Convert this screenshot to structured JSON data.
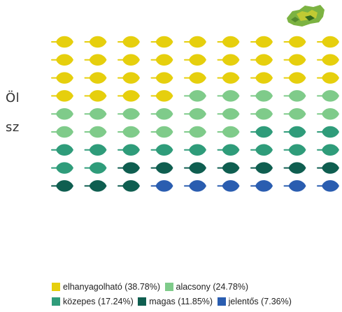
{
  "background_text": {
    "line1": "Öl",
    "line2": "sz"
  },
  "map_thumbnail": {
    "icon": "map-icon"
  },
  "chart_data": {
    "type": "waffle",
    "unit": "leaf",
    "total_icons": 81,
    "columns": 9,
    "categories": [
      {
        "label": "elhanyagolható",
        "percent_label": "(38.78%)",
        "percent": 38.78,
        "icons": 31,
        "color": "#E6CF0D"
      },
      {
        "label": "alacsony",
        "percent_label": "(24.78%)",
        "percent": 24.78,
        "icons": 20,
        "color": "#7FCB8A"
      },
      {
        "label": "közepes",
        "percent_label": "(17.24%)",
        "percent": 17.24,
        "icons": 14,
        "color": "#2F9C7A"
      },
      {
        "label": "magas",
        "percent_label": "(11.85%)",
        "percent": 11.85,
        "icons": 10,
        "color": "#0F5E50"
      },
      {
        "label": "jelentős",
        "percent_label": "(7.36%)",
        "percent": 7.36,
        "icons": 6,
        "color": "#2A5DB0"
      }
    ]
  }
}
